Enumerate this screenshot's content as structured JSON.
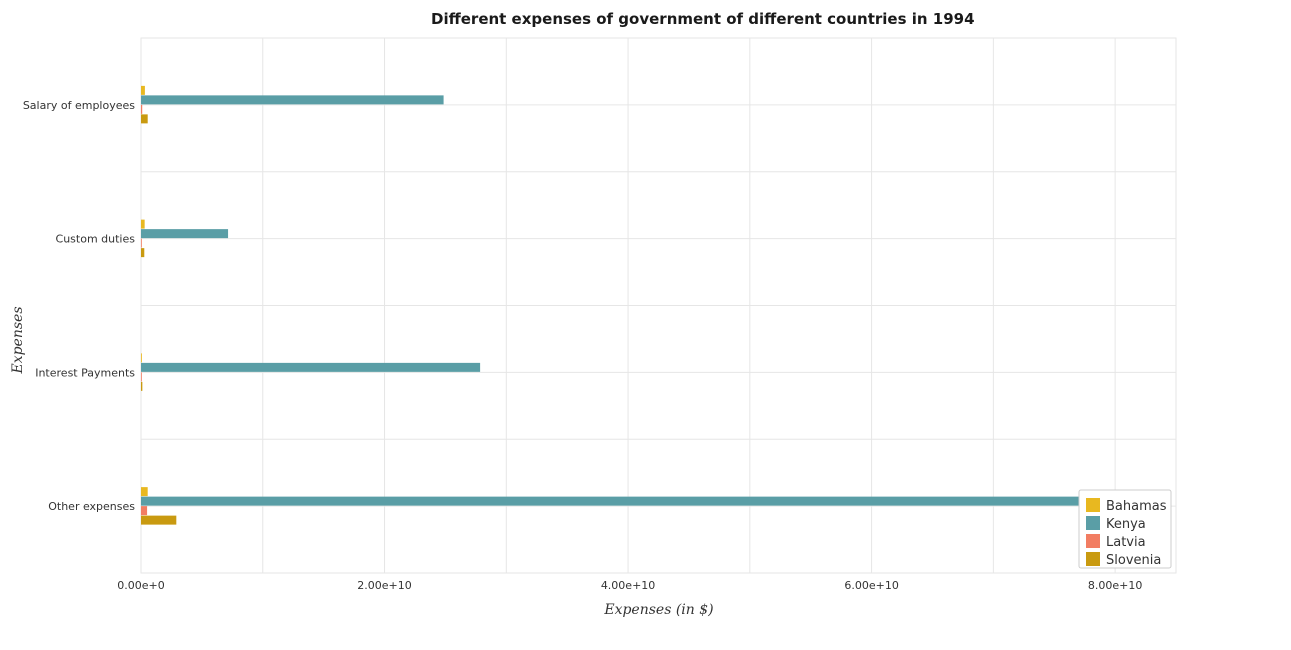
{
  "chart_data": {
    "type": "bar",
    "orientation": "horizontal",
    "title": "Different expenses of government of different countries in 1994",
    "xlabel": "Expenses (in $)",
    "ylabel": "Expenses",
    "categories": [
      "Salary of employees",
      "Custom duties",
      "Interest Payments",
      "Other expenses"
    ],
    "xlim": [
      0,
      85000000000
    ],
    "xticks": [
      0,
      20000000000,
      40000000000,
      60000000000,
      80000000000
    ],
    "xtick_labels": [
      "0.00e+0",
      "2.00e+10",
      "4.00e+10",
      "6.00e+10",
      "8.00e+10"
    ],
    "grid": true,
    "legend_position": "bottom-right",
    "series": [
      {
        "name": "Bahamas",
        "color": "#e8b820",
        "values": [
          320000000,
          300000000,
          70000000,
          550000000
        ]
      },
      {
        "name": "Kenya",
        "color": "#5a9ea6",
        "values": [
          24850000000,
          7150000000,
          27850000000,
          78400000000
        ]
      },
      {
        "name": "Latvia",
        "color": "#f27d62",
        "values": [
          100000000,
          30000000,
          15000000,
          500000000
        ]
      },
      {
        "name": "Slovenia",
        "color": "#c99a10",
        "values": [
          550000000,
          270000000,
          110000000,
          2900000000
        ]
      }
    ]
  }
}
